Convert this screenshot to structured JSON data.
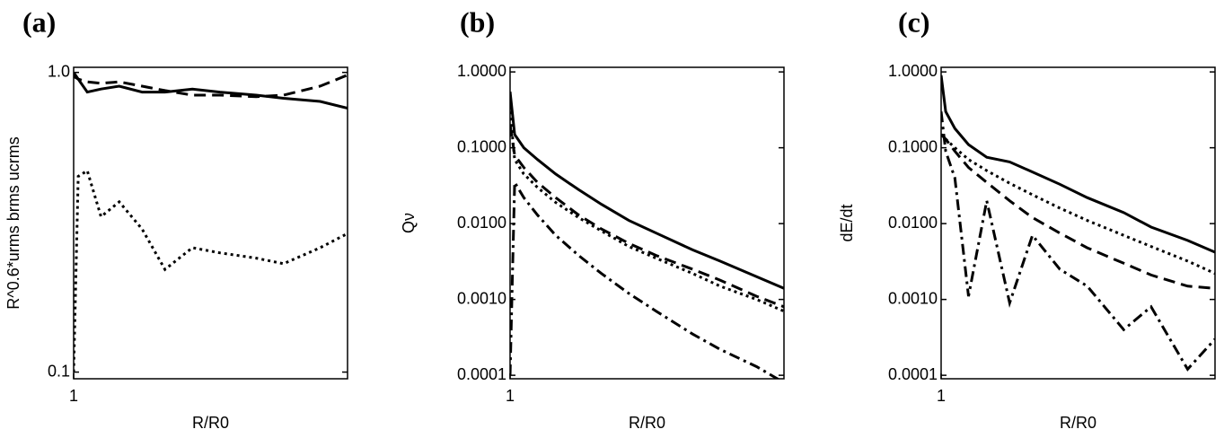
{
  "chart_data": [
    {
      "type": "line",
      "title": "(a)",
      "xlabel": "R/R0",
      "ylabel": "R^0.6*urms brms ucrms",
      "log_y": true,
      "xlim": [
        1,
        4
      ],
      "xticks": [
        1
      ],
      "ylim": [
        0.095,
        1.04
      ],
      "yticks": [
        {
          "value": 0.1,
          "label": "0.1"
        },
        {
          "value": 1,
          "label": "1.0"
        }
      ],
      "x": [
        1,
        1.05,
        1.15,
        1.3,
        1.5,
        1.75,
        2,
        2.3,
        2.6,
        3,
        3.3,
        3.7,
        4
      ],
      "series": [
        {
          "color": "#000000",
          "dash": "solid",
          "values": [
            0.97,
            0.95,
            0.86,
            0.88,
            0.9,
            0.86,
            0.86,
            0.88,
            0.86,
            0.84,
            0.82,
            0.8,
            0.76
          ]
        },
        {
          "color": "#000000",
          "dash": "dashed",
          "values": [
            1.0,
            0.95,
            0.93,
            0.92,
            0.93,
            0.9,
            0.87,
            0.84,
            0.84,
            0.83,
            0.84,
            0.9,
            0.98
          ]
        },
        {
          "color": "#000000",
          "dash": "dotted",
          "values": [
            0.1,
            0.45,
            0.47,
            0.33,
            0.37,
            0.3,
            0.22,
            0.26,
            0.25,
            0.24,
            0.23,
            0.26,
            0.29
          ]
        }
      ]
    },
    {
      "type": "line",
      "title": "(b)",
      "xlabel": "R/R0",
      "ylabel": "Qν",
      "log_y": true,
      "xlim": [
        1,
        4
      ],
      "xticks": [
        1
      ],
      "ylim": [
        9e-05,
        1.15
      ],
      "yticks": [
        {
          "value": 0.0001,
          "label": "0.0001"
        },
        {
          "value": 0.001,
          "label": "0.0010"
        },
        {
          "value": 0.01,
          "label": "0.0100"
        },
        {
          "value": 0.1,
          "label": "0.1000"
        },
        {
          "value": 1,
          "label": "1.0000"
        }
      ],
      "x": [
        1,
        1.05,
        1.15,
        1.3,
        1.5,
        1.75,
        2,
        2.3,
        2.6,
        3,
        3.3,
        3.7,
        4
      ],
      "series": [
        {
          "color": "#000000",
          "dash": "solid",
          "values": [
            0.55,
            0.15,
            0.1,
            0.07,
            0.045,
            0.028,
            0.018,
            0.011,
            0.0075,
            0.0045,
            0.0032,
            0.002,
            0.0014
          ]
        },
        {
          "color": "#000000",
          "dash": "dashed",
          "values": [
            0.2,
            0.08,
            0.055,
            0.035,
            0.022,
            0.013,
            0.0085,
            0.0055,
            0.0038,
            0.0025,
            0.0018,
            0.0011,
            0.0008
          ]
        },
        {
          "color": "#000000",
          "dash": "dotted",
          "values": [
            0.3,
            0.07,
            0.045,
            0.03,
            0.019,
            0.012,
            0.008,
            0.005,
            0.0035,
            0.0022,
            0.0015,
            0.001,
            0.0007
          ]
        },
        {
          "color": "#000000",
          "dash": "dashdot",
          "values": [
            0.0001,
            0.035,
            0.022,
            0.013,
            0.007,
            0.0038,
            0.0022,
            0.0012,
            0.0007,
            0.00035,
            0.00022,
            0.00013,
            8e-05
          ]
        }
      ]
    },
    {
      "type": "line",
      "title": "(c)",
      "xlabel": "R/R0",
      "ylabel": "dE/dt",
      "log_y": true,
      "xlim": [
        1,
        4
      ],
      "xticks": [
        1
      ],
      "ylim": [
        9e-05,
        1.15
      ],
      "yticks": [
        {
          "value": 0.0001,
          "label": "0.0001"
        },
        {
          "value": 0.001,
          "label": "0.0010"
        },
        {
          "value": 0.01,
          "label": "0.0100"
        },
        {
          "value": 0.1,
          "label": "0.1000"
        },
        {
          "value": 1,
          "label": "1.0000"
        }
      ],
      "x": [
        1,
        1.05,
        1.15,
        1.3,
        1.5,
        1.75,
        2,
        2.3,
        2.6,
        3,
        3.3,
        3.7,
        4
      ],
      "series": [
        {
          "color": "#000000",
          "dash": "solid",
          "values": [
            0.9,
            0.3,
            0.18,
            0.11,
            0.075,
            0.065,
            0.048,
            0.033,
            0.022,
            0.014,
            0.009,
            0.006,
            0.0042
          ]
        },
        {
          "color": "#000000",
          "dash": "dotted",
          "values": [
            0.15,
            0.13,
            0.1,
            0.07,
            0.05,
            0.034,
            0.024,
            0.016,
            0.011,
            0.007,
            0.005,
            0.0032,
            0.0022
          ]
        },
        {
          "color": "#000000",
          "dash": "dashed",
          "values": [
            0.15,
            0.13,
            0.09,
            0.055,
            0.035,
            0.02,
            0.012,
            0.0075,
            0.0048,
            0.003,
            0.0021,
            0.0015,
            0.0014
          ]
        },
        {
          "color": "#000000",
          "dash": "dashdot",
          "values": [
            0.3,
            0.09,
            0.04,
            0.0011,
            0.02,
            0.0009,
            0.007,
            0.0025,
            0.0015,
            0.0004,
            0.0008,
            0.00012,
            0.0003
          ]
        }
      ]
    }
  ]
}
